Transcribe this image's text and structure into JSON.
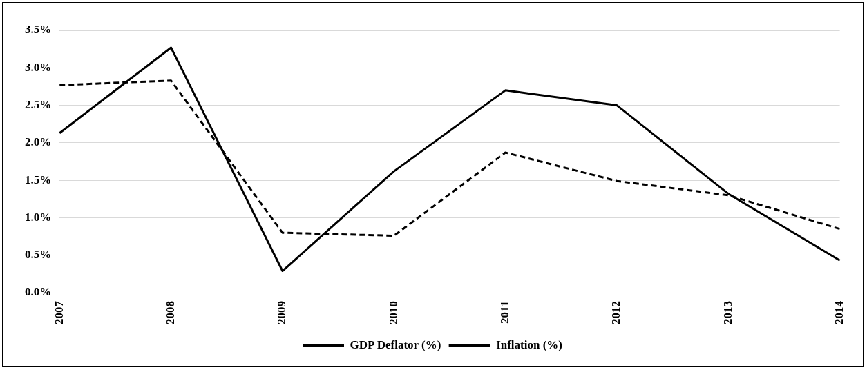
{
  "chart_data": {
    "type": "line",
    "categories": [
      "2007",
      "2008",
      "2009",
      "2010",
      "2011",
      "2012",
      "2013",
      "2014"
    ],
    "series": [
      {
        "name": "GDP Deflator (%)",
        "color": "#000000",
        "line_style": "dashed",
        "values": [
          2.77,
          2.83,
          0.8,
          0.76,
          1.87,
          1.49,
          1.3,
          0.85
        ]
      },
      {
        "name": "Inflation (%)",
        "color": "#000000",
        "line_style": "solid",
        "values": [
          2.13,
          3.27,
          0.29,
          1.62,
          2.7,
          2.5,
          1.32,
          0.43
        ]
      }
    ],
    "ylim": [
      0,
      3.5
    ],
    "yticks": [
      {
        "value": 0,
        "label": "0.0%"
      },
      {
        "value": 0.5,
        "label": "0.5%"
      },
      {
        "value": 1,
        "label": "1.0%"
      },
      {
        "value": 1.5,
        "label": "1.5%"
      },
      {
        "value": 2,
        "label": "2.0%"
      },
      {
        "value": 2.5,
        "label": "2.5%"
      },
      {
        "value": 3,
        "label": "3.0%"
      },
      {
        "value": 3.5,
        "label": "3.5%"
      }
    ],
    "grid": "y",
    "legend": "bottom",
    "marker": "none"
  }
}
